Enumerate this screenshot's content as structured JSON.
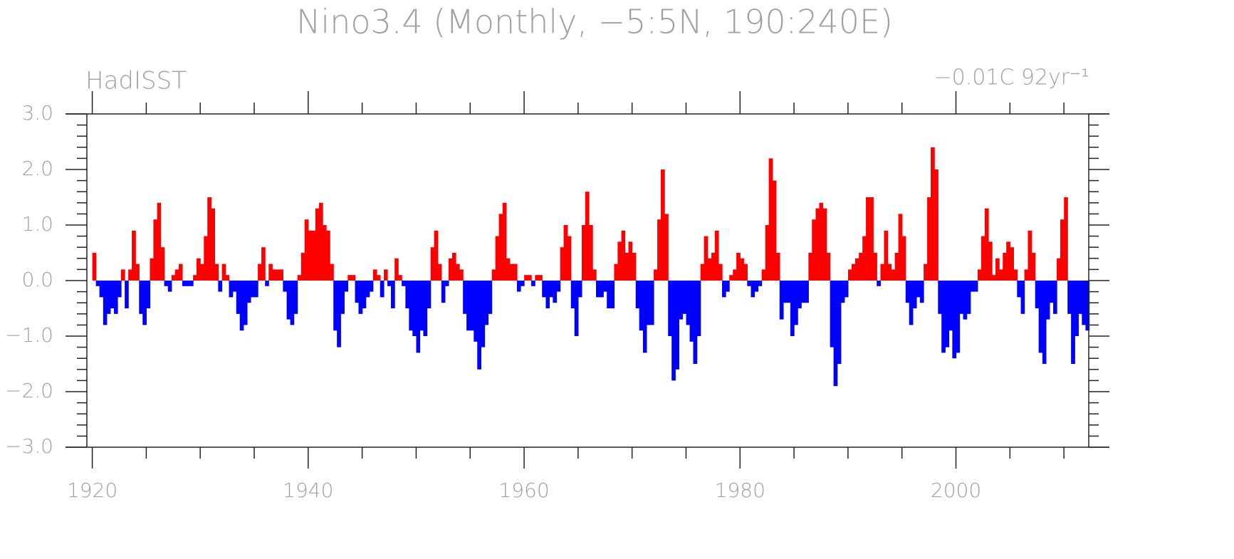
{
  "chart_data": {
    "type": "bar",
    "title": "Nino3.4 (Monthly, −5:5N, 190:240E)",
    "subtitle": "HadISST",
    "annotation": "−0.01C 92yr⁻¹",
    "positive_color": "#ff0000",
    "negative_color": "#0000ff",
    "xlim": [
      1919.5,
      2012.3
    ],
    "xticks": [
      1920,
      1940,
      1960,
      1980,
      2000
    ],
    "ylim": [
      -3,
      3
    ],
    "yticks": [
      {
        "value": 3,
        "label": "3.0"
      },
      {
        "value": 2,
        "label": "2.0"
      },
      {
        "value": 1,
        "label": "1.0"
      },
      {
        "value": 0,
        "label": "0.0"
      },
      {
        "value": -1,
        "label": "−1.0"
      },
      {
        "value": -2,
        "label": "−2.0"
      },
      {
        "value": -3,
        "label": "−3.0"
      }
    ],
    "x": [
      1920.17,
      1920.5,
      1920.83,
      1921.17,
      1921.5,
      1921.83,
      1922.17,
      1922.5,
      1922.83,
      1923.17,
      1923.5,
      1923.83,
      1924.17,
      1924.5,
      1924.83,
      1925.17,
      1925.5,
      1925.83,
      1926.17,
      1926.5,
      1926.83,
      1927.17,
      1927.5,
      1927.83,
      1928.17,
      1928.5,
      1928.83,
      1929.17,
      1929.5,
      1929.83,
      1930.17,
      1930.5,
      1930.83,
      1931.17,
      1931.5,
      1931.83,
      1932.17,
      1932.5,
      1932.83,
      1933.17,
      1933.5,
      1933.83,
      1934.17,
      1934.5,
      1934.83,
      1935.17,
      1935.5,
      1935.83,
      1936.17,
      1936.5,
      1936.83,
      1937.17,
      1937.5,
      1937.83,
      1938.17,
      1938.5,
      1938.83,
      1939.17,
      1939.5,
      1939.83,
      1940.17,
      1940.5,
      1940.83,
      1941.17,
      1941.5,
      1941.83,
      1942.17,
      1942.5,
      1942.83,
      1943.17,
      1943.5,
      1943.83,
      1944.17,
      1944.5,
      1944.83,
      1945.17,
      1945.5,
      1945.83,
      1946.17,
      1946.5,
      1946.83,
      1947.17,
      1947.5,
      1947.83,
      1948.17,
      1948.5,
      1948.83,
      1949.17,
      1949.5,
      1949.83,
      1950.17,
      1950.5,
      1950.83,
      1951.17,
      1951.5,
      1951.83,
      1952.17,
      1952.5,
      1952.83,
      1953.17,
      1953.5,
      1953.83,
      1954.17,
      1954.5,
      1954.83,
      1955.17,
      1955.5,
      1955.83,
      1956.17,
      1956.5,
      1956.83,
      1957.17,
      1957.5,
      1957.83,
      1958.17,
      1958.5,
      1958.83,
      1959.17,
      1959.5,
      1959.83,
      1960.17,
      1960.5,
      1960.83,
      1961.17,
      1961.5,
      1961.83,
      1962.17,
      1962.5,
      1962.83,
      1963.17,
      1963.5,
      1963.83,
      1964.17,
      1964.5,
      1964.83,
      1965.17,
      1965.5,
      1965.83,
      1966.17,
      1966.5,
      1966.83,
      1967.17,
      1967.5,
      1967.83,
      1968.17,
      1968.5,
      1968.83,
      1969.17,
      1969.5,
      1969.83,
      1970.17,
      1970.5,
      1970.83,
      1971.17,
      1971.5,
      1971.83,
      1972.17,
      1972.5,
      1972.83,
      1973.17,
      1973.5,
      1973.83,
      1974.17,
      1974.5,
      1974.83,
      1975.17,
      1975.5,
      1975.83,
      1976.17,
      1976.5,
      1976.83,
      1977.17,
      1977.5,
      1977.83,
      1978.17,
      1978.5,
      1978.83,
      1979.17,
      1979.5,
      1979.83,
      1980.17,
      1980.5,
      1980.83,
      1981.17,
      1981.5,
      1981.83,
      1982.17,
      1982.5,
      1982.83,
      1983.17,
      1983.5,
      1983.83,
      1984.17,
      1984.5,
      1984.83,
      1985.17,
      1985.5,
      1985.83,
      1986.17,
      1986.5,
      1986.83,
      1987.17,
      1987.5,
      1987.83,
      1988.17,
      1988.5,
      1988.83,
      1989.17,
      1989.5,
      1989.83,
      1990.17,
      1990.5,
      1990.83,
      1991.17,
      1991.5,
      1991.83,
      1992.17,
      1992.5,
      1992.83,
      1993.17,
      1993.5,
      1993.83,
      1994.17,
      1994.5,
      1994.83,
      1995.17,
      1995.5,
      1995.83,
      1996.17,
      1996.5,
      1996.83,
      1997.17,
      1997.5,
      1997.83,
      1998.17,
      1998.5,
      1998.83,
      1999.17,
      1999.5,
      1999.83,
      2000.17,
      2000.5,
      2000.83,
      2001.17,
      2001.5,
      2001.83,
      2002.17,
      2002.5,
      2002.83,
      2003.17,
      2003.5,
      2003.83,
      2004.17,
      2004.5,
      2004.83,
      2005.17,
      2005.5,
      2005.83,
      2006.17,
      2006.5,
      2006.83,
      2007.17,
      2007.5,
      2007.83,
      2008.17,
      2008.5,
      2008.83,
      2009.17,
      2009.5,
      2009.83,
      2010.17,
      2010.5,
      2010.83,
      2011.17,
      2011.5,
      2011.83,
      2012.17
    ],
    "values": [
      0.5,
      -0.1,
      -0.3,
      -0.8,
      -0.6,
      -0.5,
      -0.6,
      -0.3,
      0.2,
      -0.5,
      0.2,
      0.9,
      0.3,
      -0.6,
      -0.8,
      -0.5,
      0.4,
      1.1,
      1.4,
      0.6,
      -0.1,
      -0.2,
      0.1,
      0.2,
      0.3,
      -0.1,
      -0.1,
      -0.1,
      0.1,
      0.4,
      0.3,
      0.8,
      1.5,
      1.3,
      0.3,
      -0.2,
      0.3,
      0.1,
      -0.3,
      -0.2,
      -0.6,
      -0.9,
      -0.8,
      -0.4,
      -0.3,
      -0.3,
      0.3,
      0.6,
      -0.1,
      0.3,
      0.2,
      0.2,
      0.2,
      -0.2,
      -0.7,
      -0.8,
      -0.6,
      0.1,
      0.5,
      1.1,
      0.9,
      0.9,
      1.3,
      1.4,
      1.0,
      0.9,
      0.3,
      -0.9,
      -1.2,
      -0.6,
      -0.2,
      0.1,
      0.1,
      -0.4,
      -0.6,
      -0.5,
      -0.3,
      -0.2,
      0.2,
      0.1,
      -0.3,
      0.2,
      -0.1,
      -0.5,
      0.4,
      0.1,
      -0.1,
      -0.5,
      -0.9,
      -1.0,
      -1.3,
      -0.9,
      -1.0,
      -0.5,
      0.6,
      0.9,
      0.3,
      -0.4,
      -0.1,
      0.4,
      0.5,
      0.3,
      0.2,
      -0.6,
      -0.9,
      -0.9,
      -1.1,
      -1.6,
      -1.2,
      -0.8,
      -0.6,
      0.2,
      0.8,
      1.2,
      1.4,
      0.4,
      0.3,
      0.3,
      -0.2,
      -0.1,
      0.1,
      0.1,
      -0.1,
      0.1,
      0.1,
      -0.3,
      -0.5,
      -0.3,
      -0.4,
      -0.2,
      0.6,
      1.0,
      0.8,
      -0.5,
      -1.0,
      -0.3,
      1.0,
      1.6,
      1.0,
      0.2,
      -0.3,
      -0.3,
      -0.2,
      -0.5,
      -0.5,
      0.3,
      0.7,
      0.9,
      0.5,
      0.7,
      0.5,
      -0.5,
      -0.9,
      -1.3,
      -0.8,
      -0.8,
      0.2,
      1.1,
      2.0,
      1.2,
      -1.0,
      -1.8,
      -1.6,
      -0.7,
      -0.6,
      -0.8,
      -1.1,
      -1.5,
      -1.0,
      0.3,
      0.8,
      0.4,
      0.5,
      0.9,
      0.3,
      -0.3,
      -0.2,
      0.1,
      0.2,
      0.5,
      0.4,
      0.3,
      -0.1,
      -0.3,
      -0.2,
      -0.1,
      0.2,
      1.0,
      2.2,
      1.8,
      0.5,
      -0.7,
      -0.4,
      -0.4,
      -1.0,
      -0.8,
      -0.5,
      -0.4,
      -0.4,
      0.5,
      1.1,
      1.3,
      1.4,
      1.3,
      0.5,
      -1.2,
      -1.9,
      -1.5,
      -0.4,
      -0.3,
      0.2,
      0.3,
      0.4,
      0.5,
      0.8,
      1.5,
      1.5,
      0.5,
      -0.1,
      0.3,
      0.9,
      0.3,
      0.2,
      0.5,
      1.2,
      0.8,
      -0.4,
      -0.8,
      -0.5,
      -0.3,
      -0.4,
      0.3,
      1.5,
      2.4,
      2.0,
      -0.6,
      -1.3,
      -1.2,
      -0.9,
      -1.4,
      -1.3,
      -0.6,
      -0.7,
      -0.6,
      -0.2,
      -0.2,
      0.2,
      0.8,
      1.3,
      0.7,
      0.1,
      0.4,
      0.2,
      0.5,
      0.7,
      0.6,
      0.2,
      -0.3,
      -0.6,
      0.2,
      0.9,
      0.5,
      -0.5,
      -1.3,
      -1.5,
      -0.7,
      -0.4,
      -0.6,
      0.4,
      1.1,
      1.5,
      -0.6,
      -1.5,
      -1.0,
      -0.6,
      -0.8,
      -0.9
    ]
  }
}
